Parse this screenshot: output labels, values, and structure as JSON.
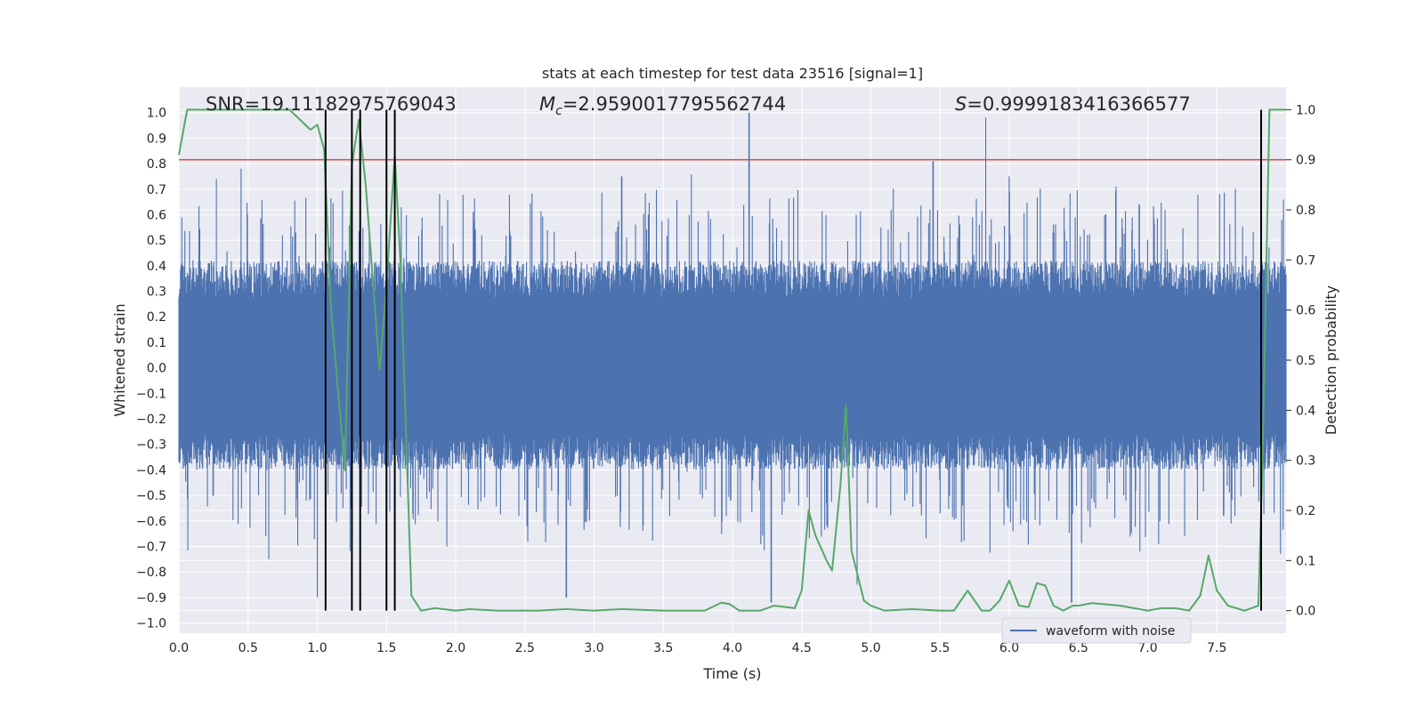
{
  "chart_data": {
    "type": "line",
    "title": "stats at each timestep for test data 23516 [signal=1]",
    "xlabel": "Time (s)",
    "ylabel_left": "Whitened strain",
    "ylabel_right": "Detection probability",
    "xlim": [
      0.0,
      8.0
    ],
    "ylim_left": [
      -1.04,
      1.1
    ],
    "ylim_right": [
      -0.045,
      1.045
    ],
    "x_ticks": [
      "0.0",
      "0.5",
      "1.0",
      "1.5",
      "2.0",
      "2.5",
      "3.0",
      "3.5",
      "4.0",
      "4.5",
      "5.0",
      "5.5",
      "6.0",
      "6.5",
      "7.0",
      "7.5"
    ],
    "x_tick_values": [
      0.0,
      0.5,
      1.0,
      1.5,
      2.0,
      2.5,
      3.0,
      3.5,
      4.0,
      4.5,
      5.0,
      5.5,
      6.0,
      6.5,
      7.0,
      7.5
    ],
    "y_left_ticks": [
      "1.0",
      "0.9",
      "0.8",
      "0.7",
      "0.6",
      "0.5",
      "0.4",
      "0.3",
      "0.2",
      "0.1",
      "0.0",
      "−0.1",
      "−0.2",
      "−0.3",
      "−0.4",
      "−0.5",
      "−0.6",
      "−0.7",
      "−0.8",
      "−0.9",
      "−1.0"
    ],
    "y_left_tick_values": [
      1.0,
      0.9,
      0.8,
      0.7,
      0.6,
      0.5,
      0.4,
      0.3,
      0.2,
      0.1,
      0.0,
      -0.1,
      -0.2,
      -0.3,
      -0.4,
      -0.5,
      -0.6,
      -0.7,
      -0.8,
      -0.9,
      -1.0
    ],
    "y_right_ticks": [
      "1.0",
      "0.9",
      "0.8",
      "0.7",
      "0.6",
      "0.5",
      "0.4",
      "0.3",
      "0.2",
      "0.1",
      "0.0"
    ],
    "y_right_tick_values": [
      1.0,
      0.9,
      0.8,
      0.7,
      0.6,
      0.5,
      0.4,
      0.3,
      0.2,
      0.1,
      0.0
    ],
    "grid": true,
    "legend": {
      "label": "waveform with noise",
      "placement": "lower right"
    },
    "annotations": {
      "snr": "SNR=19.11182975769043",
      "mc_symbol": "M",
      "mc_sub": "c",
      "mc_value": "=2.9590017795562744",
      "s_symbol": "S",
      "s_value": "=0.9999183416366577"
    },
    "series": [
      {
        "name": "waveform with noise",
        "color": "#4c72b0",
        "axis": "left",
        "typical_range": [
          -0.4,
          0.42
        ],
        "peaks": [
          {
            "x": 4.12,
            "y": 1.0
          },
          {
            "x": 5.83,
            "y": 0.98
          },
          {
            "x": 5.45,
            "y": 0.81
          },
          {
            "x": 0.45,
            "y": 0.78
          },
          {
            "x": 7.82,
            "y": 0.78
          },
          {
            "x": 1.25,
            "y": 0.76
          },
          {
            "x": 0.27,
            "y": 0.74
          },
          {
            "x": 6.0,
            "y": 0.75
          },
          {
            "x": 3.2,
            "y": 0.75
          },
          {
            "x": 4.28,
            "y": -0.92
          },
          {
            "x": 6.45,
            "y": -0.92
          },
          {
            "x": 2.8,
            "y": -0.9
          },
          {
            "x": 1.0,
            "y": -0.9
          },
          {
            "x": 4.9,
            "y": -0.85
          },
          {
            "x": 0.65,
            "y": -0.75
          }
        ]
      },
      {
        "name": "detection probability",
        "color": "#55a868",
        "axis": "right",
        "x": [
          0.0,
          0.06,
          0.2,
          0.5,
          0.8,
          0.95,
          1.0,
          1.05,
          1.1,
          1.2,
          1.25,
          1.3,
          1.35,
          1.45,
          1.5,
          1.56,
          1.6,
          1.68,
          1.75,
          1.85,
          2.0,
          2.1,
          2.3,
          2.6,
          2.8,
          3.0,
          3.2,
          3.5,
          3.8,
          3.92,
          3.98,
          4.05,
          4.2,
          4.3,
          4.45,
          4.5,
          4.55,
          4.6,
          4.68,
          4.72,
          4.78,
          4.82,
          4.86,
          4.95,
          5.0,
          5.1,
          5.3,
          5.5,
          5.6,
          5.7,
          5.75,
          5.8,
          5.86,
          5.93,
          6.0,
          6.07,
          6.14,
          6.2,
          6.26,
          6.32,
          6.39,
          6.46,
          6.5,
          6.6,
          6.8,
          7.0,
          7.1,
          7.2,
          7.3,
          7.38,
          7.44,
          7.5,
          7.58,
          7.7,
          7.8,
          7.83,
          7.88,
          7.95,
          8.0
        ],
        "values": [
          0.91,
          1.0,
          1.0,
          1.0,
          1.0,
          0.96,
          0.97,
          0.92,
          0.6,
          0.28,
          0.89,
          0.98,
          0.85,
          0.48,
          0.65,
          0.91,
          0.7,
          0.03,
          0.0,
          0.005,
          0.0,
          0.003,
          0.0,
          0.0,
          0.003,
          0.0,
          0.003,
          0.0,
          0.0,
          0.016,
          0.013,
          0.0,
          0.0,
          0.01,
          0.005,
          0.04,
          0.2,
          0.15,
          0.1,
          0.08,
          0.25,
          0.41,
          0.12,
          0.02,
          0.01,
          0.0,
          0.003,
          0.0,
          0.0,
          0.04,
          0.02,
          0.0,
          0.0,
          0.02,
          0.06,
          0.01,
          0.007,
          0.055,
          0.05,
          0.01,
          0.0,
          0.01,
          0.01,
          0.015,
          0.01,
          0.0,
          0.005,
          0.005,
          0.0,
          0.03,
          0.11,
          0.04,
          0.01,
          0.0,
          0.01,
          0.3,
          1.0,
          1.0,
          1.0
        ]
      },
      {
        "name": "threshold",
        "color": "#c44e52",
        "axis": "right",
        "values": [
          0.9
        ]
      }
    ],
    "vertical_markers": [
      1.06,
      1.25,
      1.31,
      1.5,
      1.56,
      7.82
    ]
  }
}
